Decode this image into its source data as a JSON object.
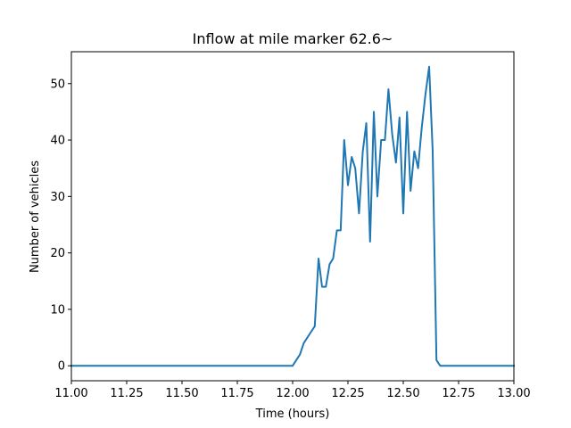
{
  "chart_data": {
    "type": "line",
    "title": "Inflow at mile marker 62.6~",
    "xlabel": "Time (hours)",
    "ylabel": "Number of vehicles",
    "xlim": [
      11.0,
      13.0
    ],
    "ylim": [
      -2.65,
      55.65
    ],
    "xticks": [
      "11.00",
      "11.25",
      "11.50",
      "11.75",
      "12.00",
      "12.25",
      "12.50",
      "12.75",
      "13.00"
    ],
    "yticks": [
      "0",
      "10",
      "20",
      "30",
      "40",
      "50"
    ],
    "grid": false,
    "colors": {
      "line": "#1f77b4"
    },
    "series": [
      {
        "x": [
          11.0,
          12.0,
          12.033,
          12.05,
          12.083,
          12.1,
          12.117,
          12.133,
          12.15,
          12.167,
          12.183,
          12.2,
          12.217,
          12.233,
          12.25,
          12.267,
          12.283,
          12.3,
          12.317,
          12.333,
          12.35,
          12.367,
          12.383,
          12.4,
          12.417,
          12.433,
          12.45,
          12.467,
          12.483,
          12.5,
          12.517,
          12.533,
          12.55,
          12.567,
          12.583,
          12.6,
          12.617,
          12.633,
          12.65,
          12.667,
          13.0
        ],
        "y": [
          0,
          0,
          2,
          4,
          6,
          7,
          19,
          14,
          14,
          18,
          19,
          24,
          24,
          40,
          32,
          37,
          35,
          27,
          38,
          43,
          22,
          45,
          30,
          40,
          40,
          49,
          41,
          36,
          44,
          27,
          45,
          31,
          38,
          35,
          42,
          48,
          53,
          38,
          1,
          0,
          0
        ]
      }
    ]
  }
}
